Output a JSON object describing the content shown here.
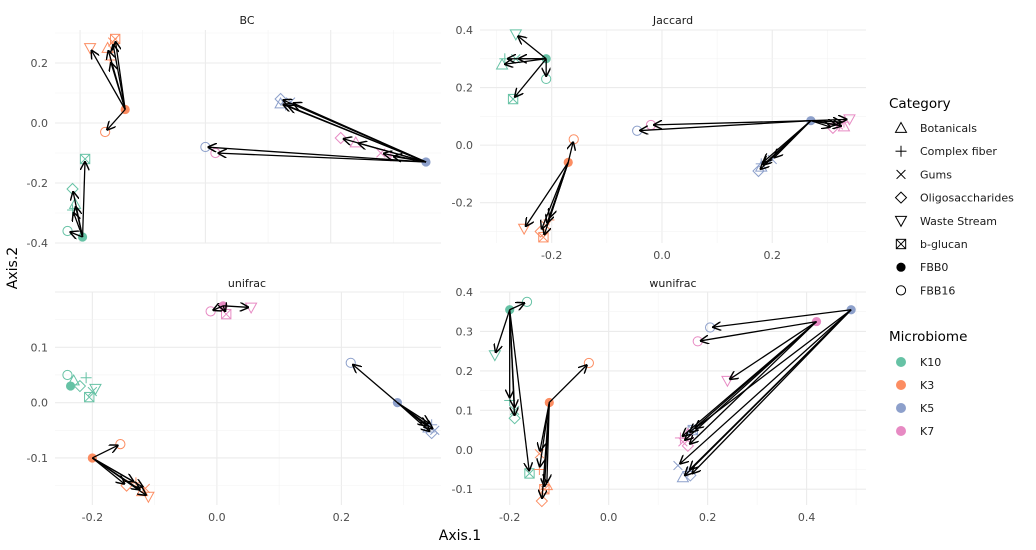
{
  "chart_data": {
    "type": "scatter",
    "xlabel": "Axis.1",
    "ylabel": "Axis.2",
    "legend": {
      "position": "right",
      "category_title": "Category",
      "categories": [
        {
          "label": "Botanicals",
          "shape": "triangle-up"
        },
        {
          "label": "Complex fiber",
          "shape": "plus"
        },
        {
          "label": "Gums",
          "shape": "cross"
        },
        {
          "label": "Oligosaccharides",
          "shape": "diamond"
        },
        {
          "label": "Waste Stream",
          "shape": "triangle-down"
        },
        {
          "label": "b-glucan",
          "shape": "square-cross"
        },
        {
          "label": "FBB0",
          "shape": "filled-circle"
        },
        {
          "label": "FBB16",
          "shape": "open-circle"
        }
      ],
      "microbiome_title": "Microbiome",
      "microbiome": [
        {
          "label": "K10",
          "color": "#66c2a5"
        },
        {
          "label": "K3",
          "color": "#fc8d62"
        },
        {
          "label": "K5",
          "color": "#8da0cb"
        },
        {
          "label": "K7",
          "color": "#e78ac3"
        }
      ]
    },
    "panels": [
      {
        "title": "BC",
        "xlim": [
          -0.3,
          0.47
        ],
        "ylim": [
          -0.4,
          0.31
        ],
        "xticks": [
          -0.25,
          0.0,
          0.25
        ],
        "xtick_labels": [
          "",
          "",
          ""
        ],
        "yticks": [
          0.2,
          0.0,
          -0.2,
          -0.4
        ],
        "ytick_labels": [
          "0.2",
          "0.0",
          "-0.2",
          "-0.4"
        ],
        "centers": [
          {
            "x": -0.16,
            "y": 0.045,
            "microbiome": "K3"
          },
          {
            "x": -0.245,
            "y": -0.38,
            "microbiome": "K10"
          },
          {
            "x": 0.44,
            "y": -0.13,
            "microbiome": "K5"
          }
        ],
        "endpoints": [
          {
            "center": 0,
            "x": -0.18,
            "y": 0.28,
            "shape": "square-cross",
            "microbiome": "K3"
          },
          {
            "center": 0,
            "x": -0.23,
            "y": 0.25,
            "shape": "triangle-down",
            "microbiome": "K3"
          },
          {
            "center": 0,
            "x": -0.185,
            "y": 0.27,
            "shape": "cross",
            "microbiome": "K3"
          },
          {
            "center": 0,
            "x": -0.19,
            "y": 0.21,
            "shape": "plus",
            "microbiome": "K3"
          },
          {
            "center": 0,
            "x": -0.195,
            "y": 0.25,
            "shape": "triangle-up",
            "microbiome": "K3"
          },
          {
            "center": 0,
            "x": -0.2,
            "y": -0.03,
            "shape": "open-circle",
            "microbiome": "K3"
          },
          {
            "center": 1,
            "x": -0.24,
            "y": -0.12,
            "shape": "square-cross",
            "microbiome": "K10"
          },
          {
            "center": 1,
            "x": -0.265,
            "y": -0.22,
            "shape": "diamond",
            "microbiome": "K10"
          },
          {
            "center": 1,
            "x": -0.26,
            "y": -0.27,
            "shape": "triangle-up",
            "microbiome": "K10"
          },
          {
            "center": 1,
            "x": -0.275,
            "y": -0.36,
            "shape": "open-circle",
            "microbiome": "K10"
          },
          {
            "center": 1,
            "x": -0.265,
            "y": -0.29,
            "shape": "plus",
            "microbiome": "K10"
          },
          {
            "center": 2,
            "x": 0.15,
            "y": 0.08,
            "shape": "diamond",
            "microbiome": "K5"
          },
          {
            "center": 2,
            "x": 0.15,
            "y": 0.065,
            "shape": "triangle-up",
            "microbiome": "K5"
          },
          {
            "center": 2,
            "x": 0.16,
            "y": 0.06,
            "shape": "plus",
            "microbiome": "K5"
          },
          {
            "center": 2,
            "x": 0.17,
            "y": 0.07,
            "shape": "cross",
            "microbiome": "K5"
          },
          {
            "center": 2,
            "x": 0.0,
            "y": -0.08,
            "shape": "open-circle",
            "microbiome": "K5"
          },
          {
            "center": 2,
            "x": 0.02,
            "y": -0.1,
            "shape": "open-circle",
            "microbiome": "K7"
          },
          {
            "center": 2,
            "x": 0.27,
            "y": -0.05,
            "shape": "diamond",
            "microbiome": "K7"
          },
          {
            "center": 2,
            "x": 0.3,
            "y": -0.065,
            "shape": "triangle-up",
            "microbiome": "K7"
          },
          {
            "center": 2,
            "x": 0.35,
            "y": -0.1,
            "shape": "cross",
            "microbiome": "K7"
          },
          {
            "center": 2,
            "x": 0.37,
            "y": -0.11,
            "shape": "plus",
            "microbiome": "K7"
          }
        ]
      },
      {
        "title": "Jaccard",
        "xlim": [
          -0.33,
          0.37
        ],
        "ylim": [
          -0.34,
          0.4
        ],
        "xticks": [
          -0.2,
          0.0,
          0.2
        ],
        "xtick_labels": [
          "-0.2",
          "0.0",
          "0.2"
        ],
        "yticks": [
          0.4,
          0.2,
          0.0,
          -0.2
        ],
        "ytick_labels": [
          "0.4",
          "0.2",
          "0.0",
          "-0.2"
        ],
        "centers": [
          {
            "x": -0.21,
            "y": 0.3,
            "microbiome": "K10"
          },
          {
            "x": -0.17,
            "y": -0.06,
            "microbiome": "K3"
          },
          {
            "x": 0.27,
            "y": 0.085,
            "microbiome": "K5"
          }
        ],
        "endpoints": [
          {
            "center": 0,
            "x": -0.265,
            "y": 0.385,
            "shape": "triangle-down",
            "microbiome": "K10"
          },
          {
            "center": 0,
            "x": -0.285,
            "y": 0.3,
            "shape": "plus",
            "microbiome": "K10"
          },
          {
            "center": 0,
            "x": -0.29,
            "y": 0.28,
            "shape": "triangle-up",
            "microbiome": "K10"
          },
          {
            "center": 0,
            "x": -0.265,
            "y": 0.3,
            "shape": "cross",
            "microbiome": "K10"
          },
          {
            "center": 0,
            "x": -0.27,
            "y": 0.16,
            "shape": "square-cross",
            "microbiome": "K10"
          },
          {
            "center": 0,
            "x": -0.21,
            "y": 0.23,
            "shape": "open-circle",
            "microbiome": "K10"
          },
          {
            "center": 1,
            "x": -0.16,
            "y": 0.02,
            "shape": "open-circle",
            "microbiome": "K3"
          },
          {
            "center": 1,
            "x": -0.25,
            "y": -0.29,
            "shape": "triangle-down",
            "microbiome": "K3"
          },
          {
            "center": 1,
            "x": -0.22,
            "y": -0.3,
            "shape": "diamond",
            "microbiome": "K3"
          },
          {
            "center": 1,
            "x": -0.215,
            "y": -0.32,
            "shape": "square-cross",
            "microbiome": "K3"
          },
          {
            "center": 1,
            "x": -0.21,
            "y": -0.28,
            "shape": "cross",
            "microbiome": "K3"
          },
          {
            "center": 1,
            "x": -0.205,
            "y": -0.26,
            "shape": "plus",
            "microbiome": "K3"
          },
          {
            "center": 2,
            "x": -0.045,
            "y": 0.05,
            "shape": "open-circle",
            "microbiome": "K5"
          },
          {
            "center": 2,
            "x": 0.175,
            "y": -0.09,
            "shape": "diamond",
            "microbiome": "K5"
          },
          {
            "center": 2,
            "x": 0.18,
            "y": -0.075,
            "shape": "triangle-up",
            "microbiome": "K5"
          },
          {
            "center": 2,
            "x": 0.2,
            "y": -0.05,
            "shape": "cross",
            "microbiome": "K5"
          },
          {
            "center": 2,
            "x": 0.18,
            "y": -0.065,
            "shape": "plus",
            "microbiome": "K5"
          },
          {
            "center": 2,
            "x": -0.02,
            "y": 0.07,
            "shape": "open-circle",
            "microbiome": "K7"
          },
          {
            "center": 2,
            "x": 0.31,
            "y": 0.06,
            "shape": "diamond",
            "microbiome": "K7"
          },
          {
            "center": 2,
            "x": 0.33,
            "y": 0.065,
            "shape": "triangle-up",
            "microbiome": "K7"
          },
          {
            "center": 2,
            "x": 0.34,
            "y": 0.09,
            "shape": "triangle-down",
            "microbiome": "K7"
          },
          {
            "center": 2,
            "x": 0.32,
            "y": 0.07,
            "shape": "cross",
            "microbiome": "K7"
          },
          {
            "center": 2,
            "x": 0.33,
            "y": 0.08,
            "shape": "plus",
            "microbiome": "K7"
          }
        ]
      },
      {
        "title": "unifrac",
        "xlim": [
          -0.26,
          0.36
        ],
        "ylim": [
          -0.185,
          0.2
        ],
        "xticks": [
          -0.2,
          0.0,
          0.2
        ],
        "xtick_labels": [
          "-0.2",
          "0.0",
          "0.2"
        ],
        "yticks": [
          0.1,
          0.0,
          -0.1
        ],
        "ytick_labels": [
          "0.1",
          "0.0",
          "-0.1"
        ],
        "centers": [
          {
            "x": 0.01,
            "y": 0.175,
            "microbiome": "K7"
          },
          {
            "x": -0.2,
            "y": -0.1,
            "microbiome": "K3"
          },
          {
            "x": 0.29,
            "y": 0.0,
            "microbiome": "K5"
          }
        ],
        "endpoints": [
          {
            "center": 0,
            "x": 0.055,
            "y": 0.172,
            "shape": "triangle-down",
            "microbiome": "K7"
          },
          {
            "center": 0,
            "x": -0.01,
            "y": 0.165,
            "shape": "open-circle",
            "microbiome": "K7"
          },
          {
            "center": 0,
            "x": 0.015,
            "y": 0.16,
            "shape": "square-cross",
            "microbiome": "K7"
          },
          {
            "center": 1,
            "x": -0.155,
            "y": -0.075,
            "shape": "open-circle",
            "microbiome": "K3"
          },
          {
            "center": 1,
            "x": -0.145,
            "y": -0.15,
            "shape": "diamond",
            "microbiome": "K3"
          },
          {
            "center": 1,
            "x": -0.12,
            "y": -0.16,
            "shape": "triangle-up",
            "microbiome": "K3"
          },
          {
            "center": 1,
            "x": -0.11,
            "y": -0.17,
            "shape": "triangle-down",
            "microbiome": "K3"
          },
          {
            "center": 1,
            "x": -0.13,
            "y": -0.145,
            "shape": "plus",
            "microbiome": "K3"
          },
          {
            "center": 1,
            "x": -0.115,
            "y": -0.155,
            "shape": "cross",
            "microbiome": "K3"
          },
          {
            "center": 2,
            "x": 0.215,
            "y": 0.072,
            "shape": "open-circle",
            "microbiome": "K5"
          },
          {
            "center": 2,
            "x": 0.345,
            "y": -0.055,
            "shape": "diamond",
            "microbiome": "K5"
          },
          {
            "center": 2,
            "x": 0.34,
            "y": -0.045,
            "shape": "triangle-up",
            "microbiome": "K5"
          },
          {
            "center": 2,
            "x": 0.35,
            "y": -0.05,
            "shape": "cross",
            "microbiome": "K5"
          },
          {
            "center": 2,
            "x": 0.345,
            "y": -0.04,
            "shape": "plus",
            "microbiome": "K5"
          }
        ],
        "scatter": [
          {
            "x": -0.24,
            "y": 0.05,
            "shape": "open-circle",
            "microbiome": "K10"
          },
          {
            "x": -0.23,
            "y": 0.04,
            "shape": "triangle-up",
            "microbiome": "K10"
          },
          {
            "x": -0.22,
            "y": 0.03,
            "shape": "diamond",
            "microbiome": "K10"
          },
          {
            "x": -0.21,
            "y": 0.045,
            "shape": "plus",
            "microbiome": "K10"
          },
          {
            "x": -0.2,
            "y": 0.02,
            "shape": "cross",
            "microbiome": "K10"
          },
          {
            "x": -0.205,
            "y": 0.01,
            "shape": "square-cross",
            "microbiome": "K10"
          },
          {
            "x": -0.195,
            "y": 0.025,
            "shape": "triangle-down",
            "microbiome": "K10"
          },
          {
            "x": -0.235,
            "y": 0.03,
            "shape": "filled-circle",
            "microbiome": "K10"
          }
        ]
      },
      {
        "title": "wunifrac",
        "xlim": [
          -0.26,
          0.52
        ],
        "ylim": [
          -0.14,
          0.4
        ],
        "xticks": [
          -0.2,
          0.0,
          0.2,
          0.4
        ],
        "xtick_labels": [
          "-0.2",
          "0.0",
          "0.2",
          "0.4"
        ],
        "yticks": [
          0.4,
          0.3,
          0.2,
          0.1,
          0.0,
          -0.1
        ],
        "ytick_labels": [
          "0.4",
          "0.3",
          "0.2",
          "0.1",
          "0.0",
          "-0.1"
        ],
        "centers": [
          {
            "x": -0.2,
            "y": 0.355,
            "microbiome": "K10"
          },
          {
            "x": -0.12,
            "y": 0.12,
            "microbiome": "K3"
          },
          {
            "x": 0.49,
            "y": 0.355,
            "microbiome": "K5"
          },
          {
            "x": 0.42,
            "y": 0.325,
            "microbiome": "K7"
          }
        ],
        "endpoints": [
          {
            "center": 0,
            "x": -0.165,
            "y": 0.375,
            "shape": "open-circle",
            "microbiome": "K10"
          },
          {
            "center": 0,
            "x": -0.23,
            "y": 0.24,
            "shape": "triangle-down",
            "microbiome": "K10"
          },
          {
            "center": 0,
            "x": -0.2,
            "y": 0.125,
            "shape": "plus",
            "microbiome": "K10"
          },
          {
            "center": 0,
            "x": -0.19,
            "y": 0.08,
            "shape": "diamond",
            "microbiome": "K10"
          },
          {
            "center": 0,
            "x": -0.19,
            "y": 0.1,
            "shape": "cross",
            "microbiome": "K10"
          },
          {
            "center": 0,
            "x": -0.16,
            "y": -0.06,
            "shape": "square-cross",
            "microbiome": "K10"
          },
          {
            "center": 1,
            "x": -0.04,
            "y": 0.22,
            "shape": "open-circle",
            "microbiome": "K3"
          },
          {
            "center": 1,
            "x": -0.135,
            "y": -0.13,
            "shape": "diamond",
            "microbiome": "K3"
          },
          {
            "center": 1,
            "x": -0.13,
            "y": -0.1,
            "shape": "square-cross",
            "microbiome": "K3"
          },
          {
            "center": 1,
            "x": -0.125,
            "y": -0.09,
            "shape": "triangle-up",
            "microbiome": "K3"
          },
          {
            "center": 1,
            "x": -0.14,
            "y": -0.05,
            "shape": "plus",
            "microbiome": "K3"
          },
          {
            "center": 1,
            "x": -0.14,
            "y": -0.01,
            "shape": "cross",
            "microbiome": "K3"
          },
          {
            "center": 2,
            "x": 0.205,
            "y": 0.31,
            "shape": "open-circle",
            "microbiome": "K5"
          },
          {
            "center": 2,
            "x": 0.15,
            "y": -0.07,
            "shape": "triangle-up",
            "microbiome": "K5"
          },
          {
            "center": 2,
            "x": 0.14,
            "y": -0.04,
            "shape": "cross",
            "microbiome": "K5"
          },
          {
            "center": 2,
            "x": 0.165,
            "y": -0.065,
            "shape": "diamond",
            "microbiome": "K5"
          },
          {
            "center": 2,
            "x": 0.16,
            "y": -0.055,
            "shape": "plus",
            "microbiome": "K5"
          },
          {
            "center": 2,
            "x": 0.17,
            "y": 0.05,
            "shape": "square-cross",
            "microbiome": "K5"
          },
          {
            "center": 3,
            "x": 0.18,
            "y": 0.275,
            "shape": "open-circle",
            "microbiome": "K7"
          },
          {
            "center": 3,
            "x": 0.24,
            "y": 0.175,
            "shape": "triangle-down",
            "microbiome": "K7"
          },
          {
            "center": 3,
            "x": 0.15,
            "y": 0.02,
            "shape": "cross",
            "microbiome": "K7"
          },
          {
            "center": 3,
            "x": 0.145,
            "y": 0.03,
            "shape": "plus",
            "microbiome": "K7"
          },
          {
            "center": 3,
            "x": 0.16,
            "y": 0.04,
            "shape": "triangle-up",
            "microbiome": "K7"
          },
          {
            "center": 3,
            "x": 0.16,
            "y": 0.01,
            "shape": "diamond",
            "microbiome": "K7"
          }
        ]
      }
    ]
  }
}
